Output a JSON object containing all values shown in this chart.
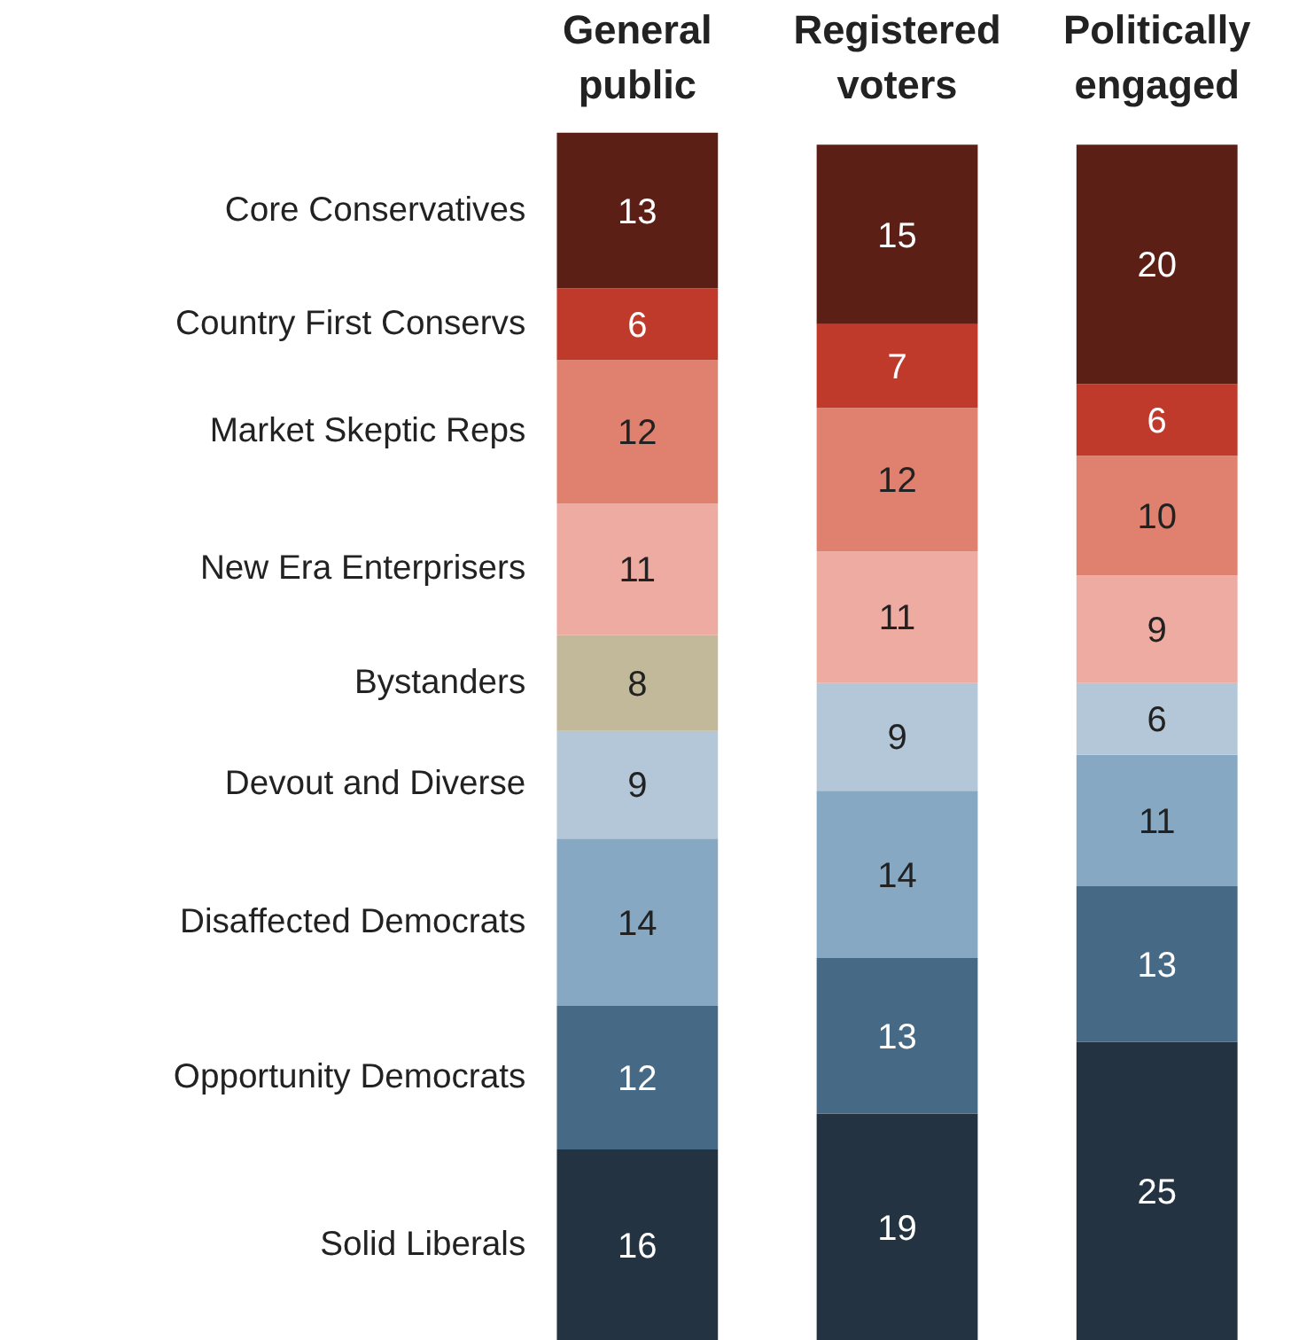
{
  "chart_data": {
    "type": "bar",
    "stacked": true,
    "data_labels": true,
    "grid": false,
    "categories": [
      "General public",
      "Registered voters",
      "Politically engaged"
    ],
    "series": [
      {
        "name": "Solid Liberals",
        "color": "#233341",
        "values": [
          16,
          19,
          25
        ]
      },
      {
        "name": "Opportunity Democrats",
        "color": "#466a86",
        "values": [
          12,
          13,
          13
        ]
      },
      {
        "name": "Disaffected Democrats",
        "color": "#86a8c3",
        "values": [
          14,
          14,
          11
        ]
      },
      {
        "name": "Devout and Diverse",
        "color": "#b3c7d9",
        "values": [
          9,
          9,
          6
        ]
      },
      {
        "name": "Bystanders",
        "color": "#c2b99a",
        "values": [
          8,
          null,
          null
        ]
      },
      {
        "name": "New Era Enterprisers",
        "color": "#eeaba2",
        "values": [
          11,
          11,
          9
        ]
      },
      {
        "name": "Market Skeptic Reps",
        "color": "#e0806e",
        "values": [
          12,
          12,
          10
        ]
      },
      {
        "name": "Country First Conservs",
        "color": "#bf3a2b",
        "values": [
          6,
          7,
          6
        ]
      },
      {
        "name": "Core Conservatives",
        "color": "#5c1f16",
        "values": [
          13,
          15,
          20
        ]
      }
    ]
  }
}
